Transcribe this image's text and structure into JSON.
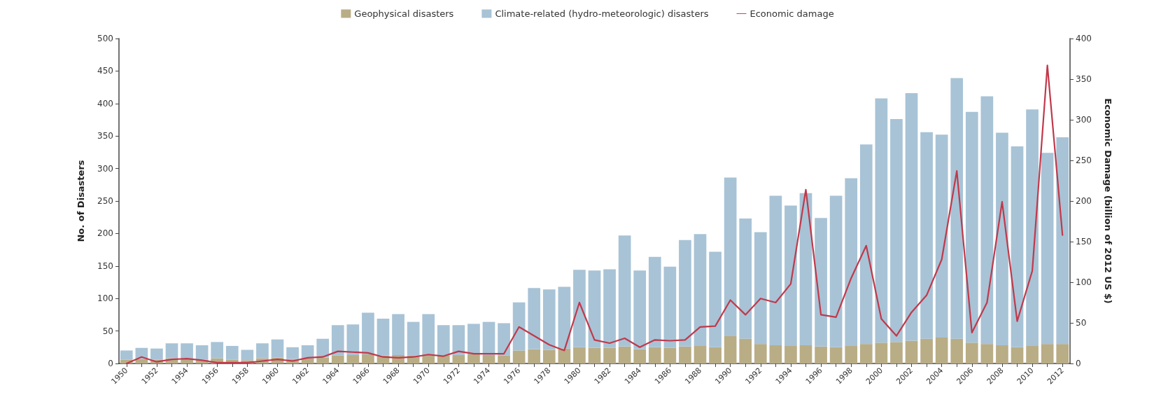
{
  "chart_data": {
    "type": "bar",
    "stacked": true,
    "ylabel": "No. of Disasters",
    "y2label": "Economic Damage (billion of 2012 US $)",
    "categories": [
      "1950",
      null,
      "1952",
      null,
      "1954",
      null,
      "1956",
      null,
      "1958",
      null,
      "1960",
      null,
      "1962",
      null,
      "1964",
      null,
      "1966",
      null,
      "1968",
      null,
      "1970",
      null,
      "1972",
      null,
      "1974",
      null,
      "1976",
      null,
      "1978",
      null,
      "1980",
      null,
      "1982",
      null,
      "1984",
      null,
      "1986",
      null,
      "1988",
      null,
      "1990",
      null,
      "1992",
      null,
      "1994",
      null,
      "1996",
      null,
      "1998",
      null,
      "2000",
      null,
      "2002",
      null,
      "2004",
      null,
      "2006",
      null,
      "2008",
      null,
      "2010",
      null,
      "2012"
    ],
    "series": [
      {
        "name": "Geophysical disasters",
        "color": "#b9ad86",
        "values": [
          6,
          7,
          6,
          8,
          7,
          6,
          8,
          6,
          5,
          8,
          9,
          7,
          8,
          9,
          12,
          13,
          14,
          12,
          13,
          12,
          14,
          12,
          13,
          14,
          13,
          12,
          20,
          22,
          21,
          23,
          25,
          24,
          24,
          26,
          22,
          25,
          24,
          26,
          27,
          25,
          42,
          38,
          30,
          28,
          27,
          28,
          26,
          25,
          27,
          30,
          32,
          33,
          35,
          38,
          40,
          38,
          32,
          30,
          28,
          25,
          27,
          30,
          30
        ]
      },
      {
        "name": "Climate-related (hydro-meteorologic) disasters",
        "color": "#a8c3d6",
        "values": [
          14,
          17,
          17,
          23,
          24,
          22,
          25,
          21,
          16,
          23,
          28,
          18,
          20,
          29,
          47,
          47,
          64,
          57,
          63,
          52,
          62,
          47,
          46,
          47,
          51,
          50,
          74,
          94,
          93,
          95,
          119,
          119,
          121,
          171,
          121,
          139,
          125,
          164,
          172,
          147,
          244,
          185,
          172,
          230,
          216,
          234,
          198,
          233,
          258,
          307,
          376,
          343,
          381,
          318,
          312,
          401,
          355,
          381,
          327,
          309,
          364,
          294,
          318
        ]
      },
      {
        "name": "Economic damage",
        "type": "line",
        "axis": "y2",
        "color": "#c0394b",
        "values": [
          0,
          8,
          2,
          5,
          6,
          4,
          1,
          1,
          1,
          3,
          5,
          3,
          7,
          8,
          15,
          14,
          13,
          8,
          7,
          8,
          11,
          9,
          15,
          12,
          12,
          12,
          45,
          34,
          23,
          16,
          75,
          29,
          25,
          31,
          20,
          29,
          28,
          29,
          45,
          46,
          78,
          60,
          80,
          75,
          98,
          214,
          60,
          57,
          105,
          145,
          55,
          34,
          63,
          84,
          128,
          237,
          38,
          75,
          199,
          52,
          114,
          367,
          158
        ]
      }
    ],
    "ylim": [
      0,
      500
    ],
    "yticks": [
      0,
      50,
      100,
      150,
      200,
      250,
      300,
      350,
      400,
      450,
      500
    ],
    "y2lim": [
      0,
      400
    ],
    "y2ticks": [
      0,
      50,
      100,
      150,
      200,
      250,
      300,
      350,
      400
    ],
    "legend": "top",
    "grid": false,
    "marker": "none",
    "line_style": "solid"
  }
}
